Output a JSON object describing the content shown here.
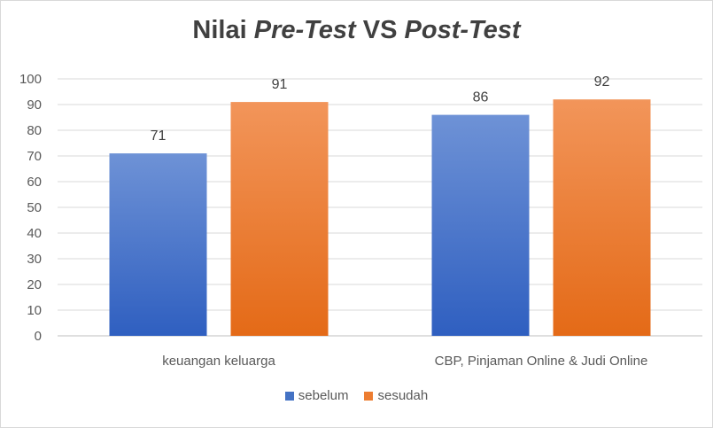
{
  "chart_data": {
    "type": "bar",
    "title_parts": [
      {
        "text": "Nilai ",
        "italic": false
      },
      {
        "text": "Pre-Test",
        "italic": true
      },
      {
        "text": " VS ",
        "italic": false
      },
      {
        "text": "Post-Test",
        "italic": true
      }
    ],
    "categories": [
      "keuangan keluarga",
      "CBP, Pinjaman Online & Judi Online"
    ],
    "series": [
      {
        "name": "sebelum",
        "values": [
          71,
          86
        ],
        "color": "#4472c4"
      },
      {
        "name": "sesudah",
        "values": [
          91,
          92
        ],
        "color": "#ed7d31"
      }
    ],
    "ylim": [
      0,
      100
    ],
    "yticks": [
      0,
      10,
      20,
      30,
      40,
      50,
      60,
      70,
      80,
      90,
      100
    ],
    "grid": true,
    "legend_position": "bottom"
  }
}
